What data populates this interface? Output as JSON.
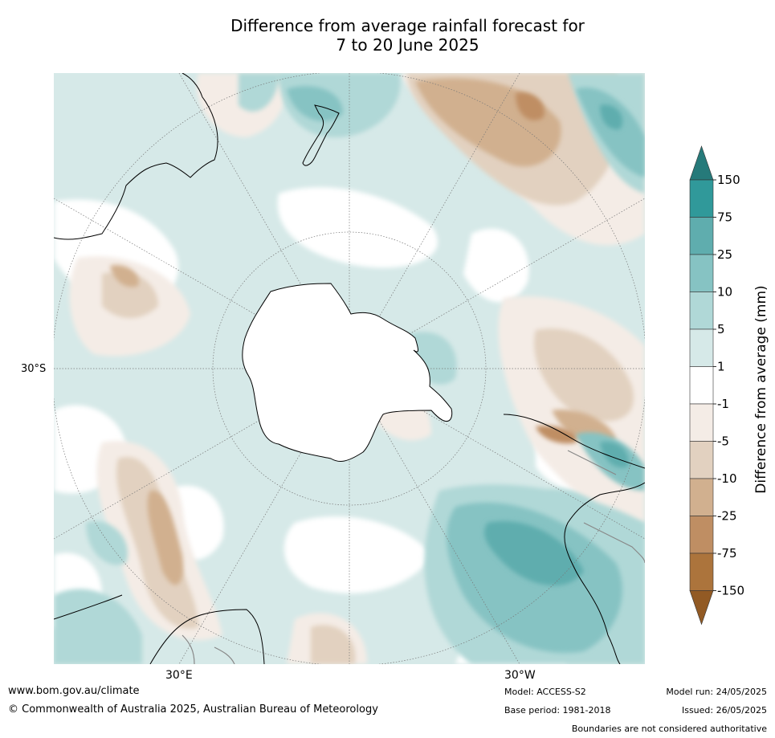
{
  "title_line1": "Difference from average rainfall forecast for",
  "title_line2": "7 to 20 June 2025",
  "map": {
    "lat_label": "30°S",
    "lon_label_left": "30°E",
    "lon_label_right": "30°W",
    "land_color": "#ffffff",
    "coast_color": "#000000"
  },
  "colorbar": {
    "title": "Difference from average (mm)",
    "bins": [
      {
        "range": "> 150",
        "color": "#267a7a"
      },
      {
        "range": "75 to 150",
        "color": "#30999a"
      },
      {
        "range": "25 to 75",
        "color": "#5fadae"
      },
      {
        "range": "10 to 25",
        "color": "#86c3c3"
      },
      {
        "range": "5 to 10",
        "color": "#b0d8d7"
      },
      {
        "range": "1 to 5",
        "color": "#d6e9e8"
      },
      {
        "range": "-1 to 1",
        "color": "#ffffff"
      },
      {
        "range": "-5 to -1",
        "color": "#f4ece6"
      },
      {
        "range": "-10 to -5",
        "color": "#e2d1c0"
      },
      {
        "range": "-25 to -10",
        "color": "#d1b08f"
      },
      {
        "range": "-75 to -25",
        "color": "#bf8e63"
      },
      {
        "range": "-150 to -75",
        "color": "#ac743c"
      },
      {
        "range": "< -150",
        "color": "#925a24"
      }
    ],
    "ticks": [
      "150",
      "75",
      "25",
      "10",
      "5",
      "1",
      "-1",
      "-5",
      "-10",
      "-25",
      "-75",
      "-150"
    ]
  },
  "footer": {
    "url": "www.bom.gov.au/climate",
    "copyright": "© Commonwealth of Australia 2025, Australian Bureau of Meteorology",
    "model": "Model: ACCESS-S2",
    "base_period": "Base period: 1981-2018",
    "model_run": "Model run: 24/05/2025",
    "issued": "Issued: 26/05/2025",
    "disclaimer": "Boundaries are not considered authoritative"
  }
}
